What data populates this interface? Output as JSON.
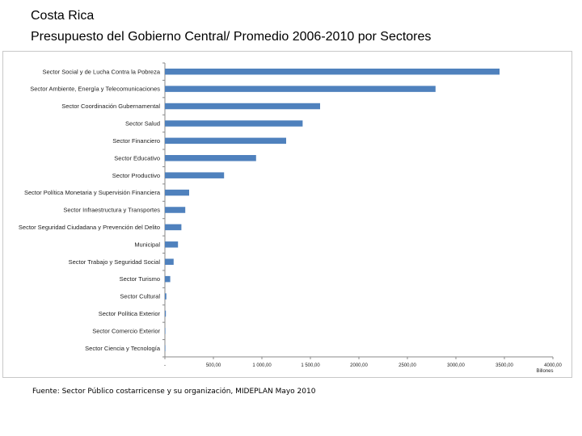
{
  "header": {
    "title_line1": "Costa Rica",
    "title_line2": "Presupuesto del Gobierno Central/  Promedio  2006-2010  por Sectores"
  },
  "source": "Fuente: Sector Público costarricense y su organización, MIDEPLAN Mayo 2010",
  "chart_data": {
    "type": "bar",
    "orientation": "horizontal",
    "title": "Presupuesto del Gobierno Central/ Promedio 2006-2010 por Sectores",
    "xlabel": "Billones",
    "ylabel": "",
    "xlim": [
      0,
      4000
    ],
    "grid": false,
    "categories": [
      "Sector Social y de Lucha Contra la Pobreza",
      "Sector Ambiente, Energía y Telecomunicaciones",
      "Sector Coordinación Gubernamental",
      "Sector Salud",
      "Sector Financiero",
      "Sector Educativo",
      "Sector Productivo",
      "Sector Política Monetaria y Supervisión Financiera",
      "Sector Infraestructura y Transportes",
      "Sector Seguridad Ciudadana y Prevención del Delito",
      "Municipal",
      "Sector Trabajo y Seguridad Social",
      "Sector Turismo",
      "Sector Cultural",
      "Sector Política Exterior",
      "Sector Comercio Exterior",
      "Sector Ciencia y Tecnología"
    ],
    "values": [
      3450,
      2790,
      1600,
      1420,
      1250,
      940,
      610,
      250,
      210,
      170,
      135,
      90,
      55,
      15,
      10,
      5,
      3
    ],
    "ticks": [
      0,
      500,
      1000,
      1500,
      2000,
      2500,
      3000,
      3500,
      4000
    ],
    "tick_labels": [
      "-",
      "500,00",
      "1 000,00",
      "1 500,00",
      "2000,00",
      "2500,00",
      "3000,00",
      "3500,00",
      "4000,00"
    ],
    "bar_color": "#4f81bd"
  }
}
